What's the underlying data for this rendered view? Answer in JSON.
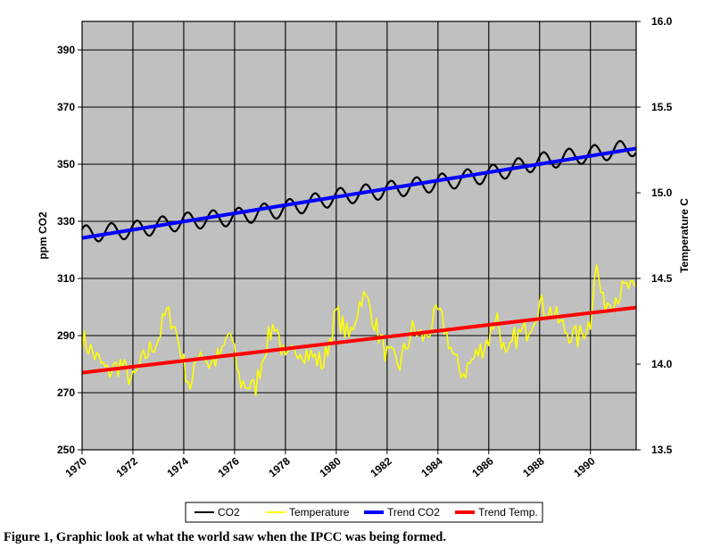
{
  "chart_data": {
    "type": "line",
    "title": "",
    "xlabel": "",
    "ylabel": "ppm CO2",
    "y2label": "Temperature C",
    "xlim": [
      1970,
      1991.8
    ],
    "ylim": [
      250,
      400
    ],
    "y2lim": [
      13.5,
      16.0
    ],
    "x_ticks": [
      "1970",
      "1972",
      "1974",
      "1976",
      "1978",
      "1980",
      "1982",
      "1984",
      "1986",
      "1988",
      "1990"
    ],
    "x_tick_values": [
      1970,
      1972,
      1974,
      1976,
      1978,
      1980,
      1982,
      1984,
      1986,
      1988,
      1990
    ],
    "y_ticks": [
      "390",
      "370",
      "350",
      "330",
      "310",
      "290",
      "270",
      "250"
    ],
    "y_tick_values": [
      390,
      370,
      350,
      330,
      310,
      290,
      270,
      250
    ],
    "y2_ticks": [
      "16.0",
      "15.5",
      "15.0",
      "14.5",
      "14.0",
      "13.5"
    ],
    "y2_tick_values": [
      16.0,
      15.5,
      15.0,
      14.5,
      14.0,
      13.5
    ],
    "grid": true,
    "plot_background": "#c0c0c0",
    "legend_position": "bottom-center",
    "series": [
      {
        "name": "CO2",
        "axis": "left",
        "color": "#000000",
        "kind": "seasonal",
        "anchors_x": [
          1970,
          1972,
          1974,
          1976,
          1978,
          1980,
          1982,
          1984,
          1986,
          1988,
          1990,
          1991.8
        ],
        "anchors_y": [
          325.5,
          327.0,
          330.0,
          331.5,
          334.5,
          338.5,
          341.0,
          343.5,
          346.5,
          351.0,
          353.5,
          356.0
        ],
        "amplitude": 3.0
      },
      {
        "name": "Temperature",
        "axis": "right",
        "color": "#ffff00",
        "kind": "noisy",
        "anchors_x": [
          1970,
          1970.5,
          1971,
          1971.5,
          1972,
          1972.5,
          1973,
          1973.3,
          1973.6,
          1974,
          1974.3,
          1974.6,
          1975,
          1975.5,
          1975.8,
          1976.2,
          1976.5,
          1976.8,
          1977.2,
          1977.6,
          1978,
          1978.5,
          1979,
          1979.5,
          1980,
          1980.5,
          1981,
          1981.3,
          1981.6,
          1982,
          1982.5,
          1983,
          1983.5,
          1984,
          1984.3,
          1984.7,
          1985,
          1985.5,
          1986,
          1986.3,
          1986.7,
          1987,
          1987.5,
          1988,
          1988.5,
          1989,
          1989.5,
          1990,
          1990.2,
          1990.5,
          1991,
          1991.5,
          1991.8
        ],
        "anchors_y": [
          14.15,
          14.05,
          13.95,
          14.0,
          13.9,
          14.05,
          14.15,
          14.3,
          14.25,
          14.0,
          13.85,
          14.1,
          14.0,
          14.05,
          14.2,
          13.9,
          13.88,
          13.85,
          14.1,
          14.25,
          14.0,
          14.1,
          14.05,
          14.0,
          14.3,
          14.15,
          14.4,
          14.35,
          14.2,
          14.05,
          14.0,
          14.2,
          14.15,
          14.3,
          14.2,
          14.0,
          13.95,
          14.05,
          14.15,
          14.3,
          14.0,
          14.15,
          14.2,
          14.35,
          14.3,
          14.2,
          14.15,
          14.25,
          14.6,
          14.35,
          14.4,
          14.45,
          14.4
        ],
        "noise": 0.07
      },
      {
        "name": "Trend CO2",
        "axis": "left",
        "color": "#0000ff",
        "kind": "linear",
        "x": [
          1970,
          1991.8
        ],
        "y": [
          324.2,
          355.5
        ]
      },
      {
        "name": "Trend Temp.",
        "axis": "right",
        "color": "#ff0000",
        "kind": "linear",
        "x": [
          1970,
          1991.8
        ],
        "y": [
          13.95,
          14.33
        ]
      }
    ],
    "legend": [
      "CO2",
      "Temperature",
      "Trend CO2",
      "Trend Temp."
    ]
  },
  "caption": "Figure 1, Graphic look at what the world saw when the IPCC was being formed."
}
